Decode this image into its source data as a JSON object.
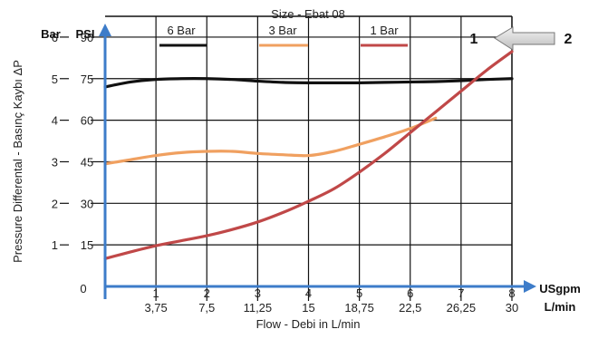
{
  "chart_data": {
    "type": "line",
    "title": "Size - Ebat 08",
    "xlabel": "Flow - Debi  in L/min",
    "ylabel": "Pressure Differental - Basınç Kaybı  ΔP",
    "x_unit_usgpm": "USgpm",
    "x_unit_lmin": "L/min",
    "y_unit_bar": "Bar",
    "y_unit_psi": "PSI",
    "origin_label": "0",
    "x_ticks_usgpm": [
      "1",
      "2",
      "3",
      "4",
      "5",
      "6",
      "7",
      "8"
    ],
    "x_ticks_lmin": [
      "3,75",
      "7,5",
      "11,25",
      "15",
      "18,75",
      "22,5",
      "26,25",
      "30"
    ],
    "y_ticks_bar": [
      "1",
      "2",
      "3",
      "4",
      "5",
      "6"
    ],
    "y_ticks_psi": [
      "15",
      "30",
      "45",
      "60",
      "75",
      "90"
    ],
    "xlim_usgpm": [
      0,
      8
    ],
    "ylim_bar": [
      0,
      6.5
    ],
    "grid": true,
    "legend_position": "top",
    "series": [
      {
        "name": "6 Bar",
        "color": "#111111",
        "x": [
          0,
          0.5,
          1,
          1.5,
          2,
          2.5,
          3,
          3.5,
          4,
          4.5,
          5,
          5.5,
          6,
          6.5,
          7,
          7.5,
          8
        ],
        "y": [
          4.8,
          4.92,
          4.98,
          5.0,
          5.0,
          4.98,
          4.94,
          4.91,
          4.9,
          4.9,
          4.9,
          4.91,
          4.92,
          4.93,
          4.95,
          4.98,
          5.0
        ]
      },
      {
        "name": "3 Bar",
        "color": "#f0a060",
        "x": [
          0,
          0.5,
          1,
          1.5,
          2,
          2.5,
          3,
          3.5,
          4,
          4.5,
          5,
          5.5,
          6,
          6.5
        ],
        "y": [
          2.95,
          3.05,
          3.15,
          3.22,
          3.25,
          3.25,
          3.2,
          3.17,
          3.15,
          3.25,
          3.42,
          3.6,
          3.8,
          4.05
        ]
      },
      {
        "name": "1 Bar",
        "color": "#c04848",
        "x": [
          0,
          0.5,
          1,
          1.5,
          2,
          2.5,
          3,
          3.5,
          4,
          4.5,
          5,
          5.5,
          6,
          6.5,
          7,
          7.5,
          8
        ],
        "y": [
          0.67,
          0.83,
          0.98,
          1.1,
          1.22,
          1.37,
          1.55,
          1.78,
          2.05,
          2.35,
          2.75,
          3.2,
          3.7,
          4.2,
          4.7,
          5.2,
          5.65
        ]
      }
    ]
  },
  "annotation": {
    "left_number": "1",
    "right_number": "2"
  }
}
